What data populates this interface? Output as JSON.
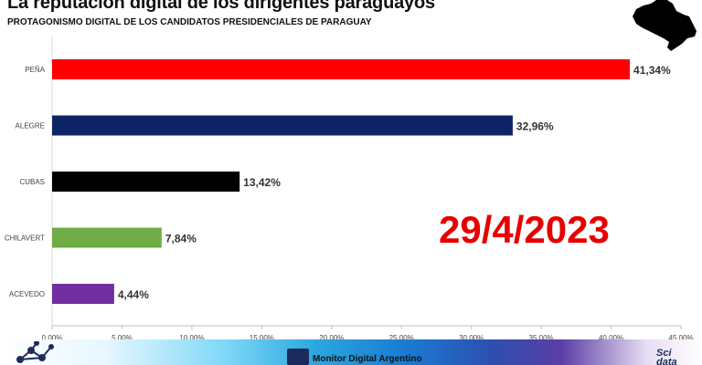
{
  "header": {
    "title": "La reputación digital de los dirigentes paraguayos",
    "subtitle": "PROTAGONISMO DIGITAL DE LOS CANDIDATOS PRESIDENCIALES DE PARAGUAY"
  },
  "date_overlay": "29/4/2023",
  "footer": {
    "text": "Monitor Digital Argentino",
    "brand_line1": "Sci",
    "brand_line2": "data"
  },
  "chart_data": {
    "type": "bar",
    "orientation": "horizontal",
    "categories": [
      "PEÑA",
      "ALEGRE",
      "CUBAS",
      "CHILAVERT",
      "ACEVEDO"
    ],
    "values": [
      41.34,
      32.96,
      13.42,
      7.84,
      4.44
    ],
    "value_labels": [
      "41,34%",
      "32,96%",
      "13,42%",
      "7,84%",
      "4,44%"
    ],
    "colors": [
      "#ff0000",
      "#0d2466",
      "#000000",
      "#70ad47",
      "#7030a0"
    ],
    "xlim": [
      0,
      45
    ],
    "x_ticks": [
      0,
      5,
      10,
      15,
      20,
      25,
      30,
      35,
      40,
      45
    ],
    "x_tick_labels": [
      "0,00%",
      "5,00%",
      "10,00%",
      "15,00%",
      "20,00%",
      "25,00%",
      "30,00%",
      "35,00%",
      "40,00%",
      "45,00%"
    ],
    "grid": false,
    "legend": "none"
  }
}
